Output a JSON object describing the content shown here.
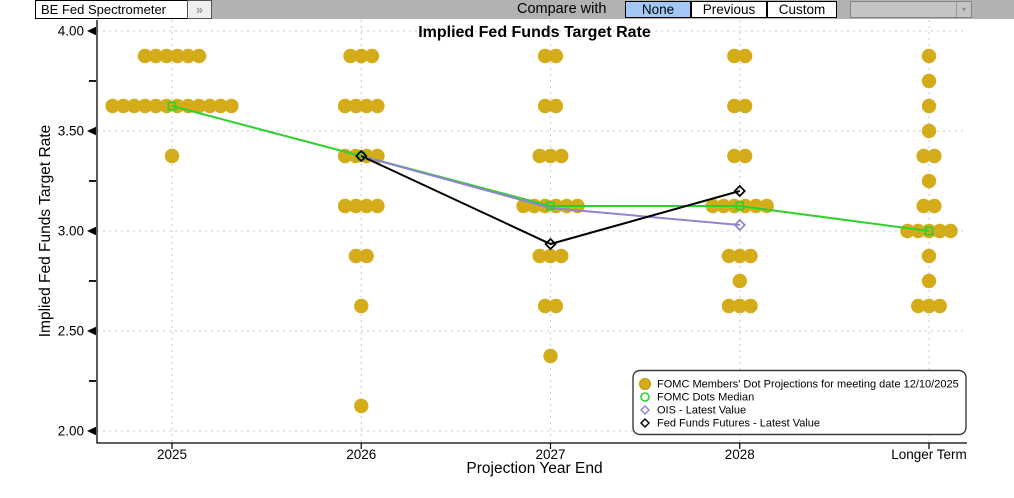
{
  "toolbar": {
    "source_button_label": "BE Fed Spectrometer",
    "expand_button_label": "»",
    "compare_label": "Compare with",
    "compare_options": [
      {
        "label": "None",
        "selected": true
      },
      {
        "label": "Previous",
        "selected": false
      },
      {
        "label": "Custom",
        "selected": false
      }
    ],
    "custom_compare_dropdown_value": "",
    "selected_option_color": "#a4c8f4",
    "dropdown_arrow_icon": "▾"
  },
  "chart_data": {
    "type": "scatter",
    "title": "Implied Fed Funds Target Rate",
    "xlabel": "Projection Year End",
    "ylabel": "Implied Fed Funds Target Rate",
    "ylim": [
      2.0,
      4.0
    ],
    "grid": true,
    "legend_position": "bottom-right",
    "categories": [
      "2025",
      "2026",
      "2027",
      "2028",
      "Longer Term"
    ],
    "yticks": [
      {
        "label": "4.00",
        "value": 4.0
      },
      {
        "label": "3.50",
        "value": 3.5
      },
      {
        "label": "3.00",
        "value": 3.0
      },
      {
        "label": "2.50",
        "value": 2.5
      },
      {
        "label": "2.00",
        "value": 2.0
      }
    ],
    "minor_yticks": [
      3.75,
      3.25,
      2.75,
      2.25
    ],
    "dot_color": "#d4ac19",
    "dot_columns": [
      {
        "category": "2025",
        "dots": [
          {
            "rate": 3.875,
            "count": 6
          },
          {
            "rate": 3.625,
            "count": 12
          },
          {
            "rate": 3.375,
            "count": 1
          }
        ]
      },
      {
        "category": "2026",
        "dots": [
          {
            "rate": 3.875,
            "count": 3
          },
          {
            "rate": 3.625,
            "count": 4
          },
          {
            "rate": 3.375,
            "count": 4
          },
          {
            "rate": 3.125,
            "count": 4
          },
          {
            "rate": 2.875,
            "count": 2
          },
          {
            "rate": 2.625,
            "count": 1
          },
          {
            "rate": 2.125,
            "count": 1
          }
        ]
      },
      {
        "category": "2027",
        "dots": [
          {
            "rate": 3.875,
            "count": 2
          },
          {
            "rate": 3.625,
            "count": 2
          },
          {
            "rate": 3.375,
            "count": 3
          },
          {
            "rate": 3.125,
            "count": 6
          },
          {
            "rate": 2.875,
            "count": 3
          },
          {
            "rate": 2.625,
            "count": 2
          },
          {
            "rate": 2.375,
            "count": 1
          }
        ]
      },
      {
        "category": "2028",
        "dots": [
          {
            "rate": 3.875,
            "count": 2
          },
          {
            "rate": 3.625,
            "count": 2
          },
          {
            "rate": 3.375,
            "count": 2
          },
          {
            "rate": 3.125,
            "count": 6
          },
          {
            "rate": 2.875,
            "count": 3
          },
          {
            "rate": 2.75,
            "count": 1
          },
          {
            "rate": 2.625,
            "count": 3
          }
        ]
      },
      {
        "category": "Longer Term",
        "dots": [
          {
            "rate": 3.875,
            "count": 1
          },
          {
            "rate": 3.75,
            "count": 1
          },
          {
            "rate": 3.625,
            "count": 1
          },
          {
            "rate": 3.5,
            "count": 1
          },
          {
            "rate": 3.375,
            "count": 2
          },
          {
            "rate": 3.25,
            "count": 1
          },
          {
            "rate": 3.125,
            "count": 2
          },
          {
            "rate": 3.0,
            "count": 5
          },
          {
            "rate": 2.875,
            "count": 1
          },
          {
            "rate": 2.75,
            "count": 1
          },
          {
            "rate": 2.625,
            "count": 3
          }
        ]
      }
    ],
    "series": [
      {
        "name": "FOMC Dots Median",
        "color": "#2fd12f",
        "marker": "open-square",
        "points": [
          {
            "category": "2025",
            "value": 3.625
          },
          {
            "category": "2026",
            "value": 3.375
          },
          {
            "category": "2027",
            "value": 3.125
          },
          {
            "category": "2028",
            "value": 3.125
          },
          {
            "category": "Longer Term",
            "value": 3.0
          }
        ],
        "marker_points": [
          {
            "category": "2025",
            "value": 3.625
          },
          {
            "category": "2026",
            "value": 3.375
          },
          {
            "category": "2027",
            "value": 3.125
          },
          {
            "category": "2028",
            "value": 3.125
          },
          {
            "category": "Longer Term",
            "value": 3.0
          }
        ]
      },
      {
        "name": "OIS - Latest Value",
        "color": "#9283d2",
        "marker": "open-diamond",
        "points": [
          {
            "category": "2026",
            "value": 3.375
          },
          {
            "category": "2027",
            "value": 3.115
          },
          {
            "category": "2028",
            "value": 3.03
          }
        ],
        "marker_points": [
          {
            "category": "2028",
            "value": 3.03
          }
        ]
      },
      {
        "name": "Fed Funds Futures - Latest Value",
        "color": "#000000",
        "marker": "open-diamond",
        "points": [
          {
            "category": "2026",
            "value": 3.375
          },
          {
            "category": "2027",
            "value": 2.935
          },
          {
            "category": "2028",
            "value": 3.2
          }
        ],
        "marker_points": [
          {
            "category": "2026",
            "value": 3.375
          },
          {
            "category": "2027",
            "value": 2.935
          },
          {
            "category": "2028",
            "value": 3.2
          }
        ]
      }
    ],
    "legend": [
      {
        "marker": "filled-circle",
        "color": "#d4ac19",
        "label": "FOMC Members' Dot Projections for meeting date 12/10/2025"
      },
      {
        "marker": "open-circle",
        "color": "#2fd12f",
        "label": "FOMC Dots Median"
      },
      {
        "marker": "open-diamond",
        "color": "#9283d2",
        "label": "OIS - Latest Value"
      },
      {
        "marker": "open-diamond",
        "color": "#000000",
        "label": "Fed Funds Futures - Latest Value"
      }
    ]
  }
}
